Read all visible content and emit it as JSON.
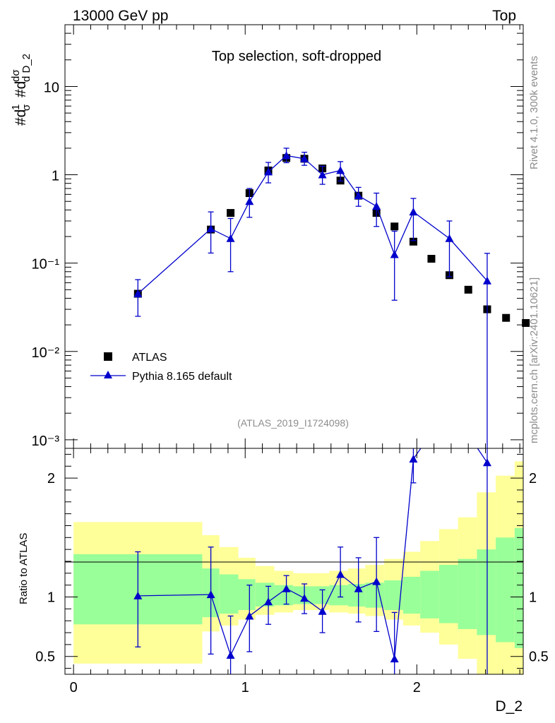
{
  "header": {
    "left": "13000 GeV pp",
    "right": "Top"
  },
  "side_labels": {
    "rivet": "Rivet 4.1.0,  300k events",
    "source": "mcplots.cern.ch [arXiv:2401.10621]"
  },
  "chart_data": [
    {
      "type": "scatter",
      "title": "Top selection, soft-dropped",
      "watermark": "(ATLAS_2019_I1724098)",
      "xlabel": "D_2",
      "ylabel": "#dσ/#dD_2 · 1/σ",
      "yscale": "log",
      "ylim": [
        0.0008,
        50
      ],
      "xlim": [
        -0.05,
        2.62
      ],
      "xticks": [
        0,
        1,
        2
      ],
      "yticks": [
        {
          "value": 10,
          "label": "10"
        },
        {
          "value": 1,
          "label": "1"
        },
        {
          "value": 0.1,
          "label": "10⁻¹"
        },
        {
          "value": 0.01,
          "label": "10⁻²"
        },
        {
          "value": 0.001,
          "label": "10⁻³"
        }
      ],
      "legend_position": "middle-left",
      "series": [
        {
          "name": "ATLAS",
          "color": "#000000",
          "marker": "square",
          "x": [
            0.375,
            0.8,
            0.915,
            1.025,
            1.135,
            1.24,
            1.345,
            1.45,
            1.555,
            1.66,
            1.765,
            1.87,
            1.98,
            2.085,
            2.19,
            2.3,
            2.41,
            2.52,
            2.635
          ],
          "y": [
            0.045,
            0.24,
            0.37,
            0.62,
            1.12,
            1.55,
            1.52,
            1.18,
            0.86,
            0.58,
            0.37,
            0.26,
            0.175,
            0.112,
            0.073,
            0.05,
            0.03,
            0.024,
            0.021
          ]
        },
        {
          "name": "Pythia 8.165 default",
          "color": "#0000cc",
          "marker": "triangle",
          "x": [
            0.375,
            0.8,
            0.915,
            1.025,
            1.135,
            1.24,
            1.345,
            1.45,
            1.555,
            1.66,
            1.765,
            1.87,
            1.98,
            2.19,
            2.41
          ],
          "y": [
            0.045,
            0.245,
            0.19,
            0.5,
            1.08,
            1.65,
            1.52,
            1.0,
            1.12,
            0.58,
            0.44,
            0.125,
            0.38,
            0.19,
            0.063
          ],
          "err_low": [
            0.02,
            0.115,
            0.11,
            0.17,
            0.27,
            0.28,
            0.24,
            0.22,
            0.27,
            0.14,
            0.18,
            0.087,
            0.2,
            0.12,
            0.063
          ],
          "err_high": [
            0.02,
            0.135,
            0.13,
            0.2,
            0.3,
            0.35,
            0.28,
            0.25,
            0.29,
            0.14,
            0.18,
            0.105,
            0.16,
            0.11,
            0.066
          ]
        }
      ]
    },
    {
      "type": "line",
      "ylabel": "Ratio to ATLAS",
      "xlabel": "D_2",
      "reference_line": 1,
      "ylim": [
        0.35,
        2.25
      ],
      "xlim": [
        -0.05,
        2.62
      ],
      "xticks": [
        0,
        1,
        2
      ],
      "yticks": [
        0.5,
        1,
        2
      ],
      "bands": {
        "edges": [
          0,
          0.75,
          0.85,
          0.96,
          1.06,
          1.17,
          1.28,
          1.38,
          1.49,
          1.6,
          1.7,
          1.81,
          1.92,
          2.02,
          2.13,
          2.24,
          2.35,
          2.46,
          2.57,
          2.67
        ],
        "inner_low": [
          0.77,
          0.83,
          0.86,
          0.89,
          0.92,
          0.93,
          0.94,
          0.94,
          0.93,
          0.92,
          0.91,
          0.89,
          0.86,
          0.82,
          0.78,
          0.73,
          0.68,
          0.62,
          0.57
        ],
        "inner_high": [
          1.36,
          1.24,
          1.19,
          1.15,
          1.12,
          1.1,
          1.09,
          1.09,
          1.1,
          1.11,
          1.12,
          1.14,
          1.17,
          1.22,
          1.27,
          1.32,
          1.4,
          1.5,
          1.58
        ],
        "outer_low": [
          0.44,
          0.71,
          0.76,
          0.81,
          0.85,
          0.87,
          0.89,
          0.89,
          0.87,
          0.86,
          0.84,
          0.81,
          0.76,
          0.7,
          0.6,
          0.48,
          0.35,
          0.35,
          0.35
        ],
        "outer_high": [
          1.63,
          1.52,
          1.42,
          1.33,
          1.26,
          1.22,
          1.2,
          1.2,
          1.22,
          1.24,
          1.27,
          1.32,
          1.38,
          1.47,
          1.57,
          1.67,
          1.88,
          2.02,
          2.14
        ],
        "inner_color": "#99ff99",
        "outer_color": "#ffff99"
      },
      "series": [
        {
          "name": "Pythia 8.165 default / ATLAS",
          "color": "#0000cc",
          "x": [
            0.375,
            0.8,
            0.915,
            1.025,
            1.135,
            1.24,
            1.345,
            1.45,
            1.555,
            1.66,
            1.765,
            1.87,
            1.98,
            2.19,
            2.41
          ],
          "y": [
            1.01,
            1.02,
            0.51,
            0.84,
            0.96,
            1.07,
            0.99,
            0.88,
            1.19,
            1.07,
            1.13,
            0.48,
            2.16,
            2.6,
            2.13
          ],
          "err_low": [
            0.43,
            0.5,
            0.45,
            0.3,
            0.19,
            0.13,
            0.13,
            0.18,
            0.19,
            0.28,
            0.42,
            0.8,
            0.2,
            0.3,
            2.1
          ],
          "err_high": [
            0.37,
            0.4,
            0.33,
            0.26,
            0.13,
            0.11,
            0.12,
            0.18,
            0.23,
            0.26,
            0.37,
            0.39,
            0.2,
            0.3,
            1.0
          ]
        }
      ]
    }
  ]
}
